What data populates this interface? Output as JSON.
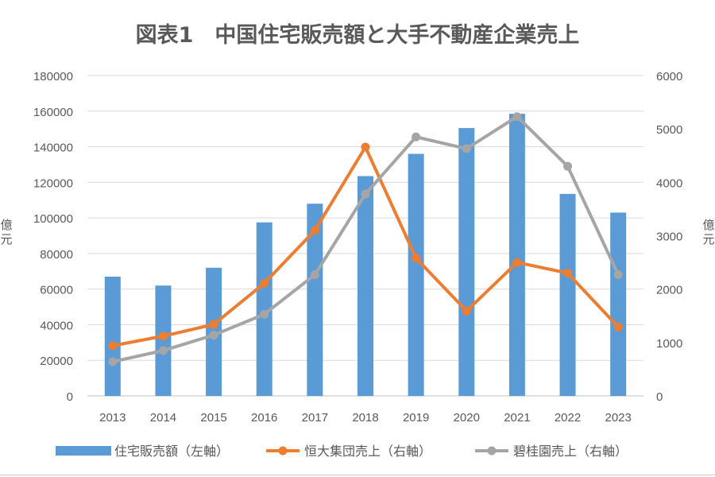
{
  "chart_data": {
    "type": "bar+line",
    "title": "図表1　中国住宅販売額と大手不動産企業売上",
    "categories": [
      "2013",
      "2014",
      "2015",
      "2016",
      "2017",
      "2018",
      "2019",
      "2020",
      "2021",
      "2022",
      "2023"
    ],
    "y_left": {
      "label": "億元",
      "min": 0,
      "max": 180000,
      "step": 20000,
      "ticks": [
        "0",
        "20000",
        "40000",
        "60000",
        "80000",
        "100000",
        "120000",
        "140000",
        "160000",
        "180000"
      ]
    },
    "y_right": {
      "label": "億元",
      "min": 0,
      "max": 6000,
      "step": 1000,
      "ticks": [
        "0",
        "1000",
        "2000",
        "3000",
        "4000",
        "5000",
        "6000"
      ]
    },
    "grid": true,
    "legend_position": "bottom",
    "series": [
      {
        "name": "住宅販売額（左軸）",
        "kind": "bar",
        "axis": "left",
        "color": "#5B9BD5",
        "values": [
          67000,
          62000,
          72000,
          97500,
          108000,
          123500,
          136000,
          150500,
          158500,
          113500,
          103000
        ]
      },
      {
        "name": "恒大集団売上（右軸）",
        "kind": "line",
        "axis": "right",
        "color": "#ED7D31",
        "values": [
          940,
          1120,
          1340,
          2110,
          3100,
          4660,
          2580,
          1590,
          2500,
          2300,
          1290
        ]
      },
      {
        "name": "碧桂園売上（右軸）",
        "kind": "line",
        "axis": "right",
        "color": "#A5A5A5",
        "values": [
          640,
          850,
          1140,
          1530,
          2270,
          3780,
          4850,
          4630,
          5230,
          4300,
          2270
        ]
      }
    ]
  }
}
